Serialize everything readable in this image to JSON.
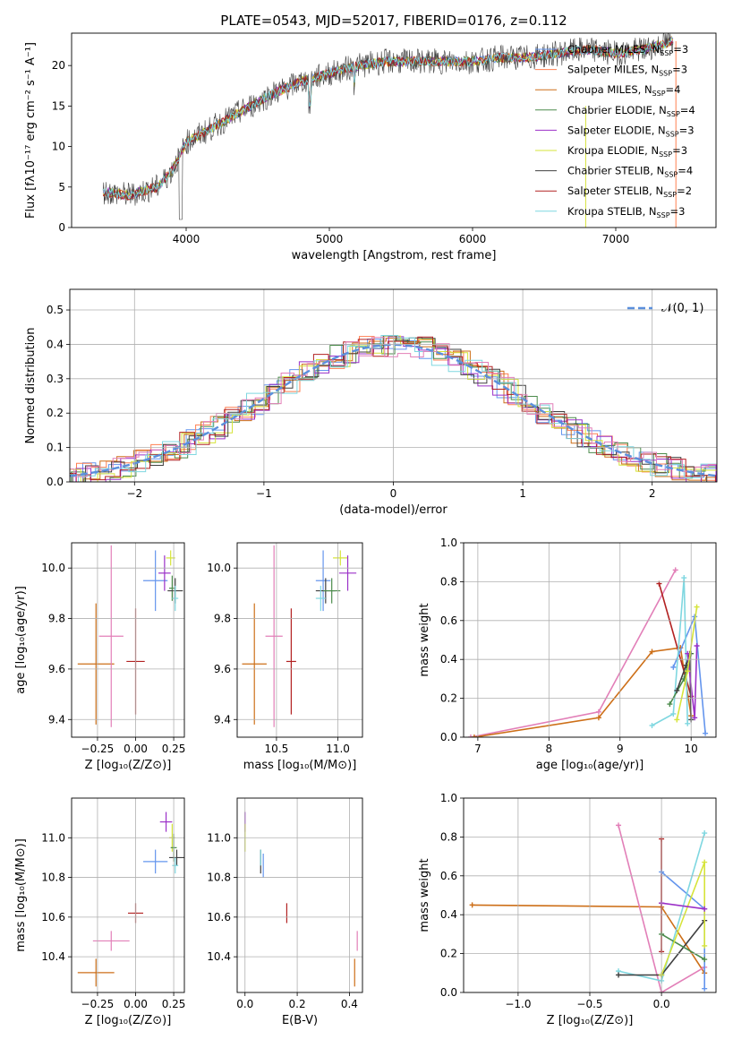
{
  "chart_data": [
    {
      "type": "line",
      "title": "PLATE=0543, MJD=52017, FIBERID=0176, z=0.112",
      "xlabel": "wavelength [Angstrom, rest frame]",
      "ylabel": "Flux [fλ10⁻¹⁷ erg cm⁻² s⁻¹ A⁻¹]",
      "xlim": [
        3200,
        7700
      ],
      "ylim": [
        0,
        24
      ],
      "xticks": [
        "4000",
        "5000",
        "6000",
        "7000"
      ],
      "yticks": [
        "0",
        "5",
        "10",
        "15",
        "20"
      ],
      "grid": false,
      "legend_position": "right",
      "spectrum_continuum": {
        "x": [
          3400,
          3600,
          3800,
          3900,
          4000,
          4200,
          4400,
          4600,
          4800,
          5000,
          5200,
          5400,
          5600,
          5800,
          6000,
          6200,
          6400,
          6600,
          6800,
          7000,
          7200,
          7300,
          7400
        ],
        "y": [
          4.5,
          4.0,
          5.0,
          7.0,
          10.5,
          12.5,
          14.5,
          16.5,
          18.0,
          19.0,
          20.0,
          20.5,
          20.5,
          20.5,
          20.5,
          21.0,
          21.0,
          21.5,
          22.0,
          21.5,
          22.0,
          22.5,
          23.0
        ]
      },
      "series": [
        {
          "name": "Chabrier MILES, N",
          "sub": "SSP",
          "tail": "=3",
          "color": "#6495ed"
        },
        {
          "name": "Salpeter MILES, N",
          "sub": "SSP",
          "tail": "=3",
          "color": "#ff7f50"
        },
        {
          "name": "Kroupa MILES, N",
          "sub": "SSP",
          "tail": "=4",
          "color": "#cd6f18"
        },
        {
          "name": "Chabrier ELODIE, N",
          "sub": "SSP",
          "tail": "=4",
          "color": "#4b8b4b"
        },
        {
          "name": "Salpeter ELODIE, N",
          "sub": "SSP",
          "tail": "=3",
          "color": "#9b30c8"
        },
        {
          "name": "Kroupa ELODIE, N",
          "sub": "SSP",
          "tail": "=3",
          "color": "#d6e43a"
        },
        {
          "name": "Chabrier STELIB, N",
          "sub": "SSP",
          "tail": "=4",
          "color": "#404040"
        },
        {
          "name": "Salpeter STELIB, N",
          "sub": "SSP",
          "tail": "=2",
          "color": "#b22222"
        },
        {
          "name": "Kroupa STELIB, N",
          "sub": "SSP",
          "tail": "=3",
          "color": "#7fd7e0"
        }
      ]
    },
    {
      "type": "line",
      "xlabel": "(data-model)/error",
      "ylabel": "Normed distribution",
      "xlim": [
        -2.5,
        2.5
      ],
      "ylim": [
        0,
        0.56
      ],
      "xticks": [
        "−2",
        "−1",
        "0",
        "1",
        "2"
      ],
      "yticks": [
        "0.0",
        "0.1",
        "0.2",
        "0.3",
        "0.4",
        "0.5"
      ],
      "grid": true,
      "legend_position": "top-right",
      "legend_label": "𝒩(0, 1)",
      "curve_color": "#5b8fdc",
      "hist_colors": [
        "#6495ed",
        "#ff7f50",
        "#cd6f18",
        "#4b8b4b",
        "#9b30c8",
        "#d6e43a",
        "#404040",
        "#b22222",
        "#7fd7e0",
        "#e27fb8"
      ]
    },
    {
      "type": "scatter",
      "xlabel": "Z [log₁₀(Z/Z⊙)]",
      "ylabel": "age  [log₁₀(age/yr)]",
      "xlim": [
        -0.42,
        0.32
      ],
      "ylim": [
        9.33,
        10.1
      ],
      "xticks": [
        "−0.25",
        "0.00",
        "0.25"
      ],
      "yticks": [
        "9.4",
        "9.6",
        "9.8",
        "10.0"
      ],
      "points": [
        {
          "x": -0.26,
          "y": 9.62,
          "xerr": 0.12,
          "yerr": 0.24,
          "color": "#cd6f18"
        },
        {
          "x": -0.16,
          "y": 9.73,
          "xerr": 0.08,
          "yerr": 0.36,
          "color": "#e27fb8"
        },
        {
          "x": 0.0,
          "y": 9.63,
          "xerr": 0.06,
          "yerr": 0.21,
          "color": "#b22222"
        },
        {
          "x": 0.13,
          "y": 9.95,
          "xerr": 0.08,
          "yerr": 0.12,
          "color": "#6495ed"
        },
        {
          "x": 0.19,
          "y": 9.98,
          "xerr": 0.04,
          "yerr": 0.07,
          "color": "#9b30c8"
        },
        {
          "x": 0.23,
          "y": 10.04,
          "xerr": 0.03,
          "yerr": 0.03,
          "color": "#d6e43a"
        },
        {
          "x": 0.24,
          "y": 9.92,
          "xerr": 0.02,
          "yerr": 0.05,
          "color": "#4b8b4b"
        },
        {
          "x": 0.26,
          "y": 9.91,
          "xerr": 0.05,
          "yerr": 0.05,
          "color": "#404040"
        },
        {
          "x": 0.26,
          "y": 9.88,
          "xerr": 0.02,
          "yerr": 0.05,
          "color": "#7fd7e0"
        }
      ]
    },
    {
      "type": "scatter",
      "xlabel": "mass [log₁₀(M/M⊙)]",
      "xlim": [
        10.18,
        11.2
      ],
      "ylim": [
        9.33,
        10.1
      ],
      "xticks": [
        "10.5",
        "11.0"
      ],
      "yticks": [
        "9.4",
        "9.6",
        "9.8",
        "10.0"
      ],
      "points": [
        {
          "x": 10.32,
          "y": 9.62,
          "xerr": 0.1,
          "yerr": 0.24,
          "color": "#cd6f18"
        },
        {
          "x": 10.48,
          "y": 9.73,
          "xerr": 0.07,
          "yerr": 0.36,
          "color": "#e27fb8"
        },
        {
          "x": 10.62,
          "y": 9.63,
          "xerr": 0.04,
          "yerr": 0.21,
          "color": "#b22222"
        },
        {
          "x": 10.88,
          "y": 9.95,
          "xerr": 0.06,
          "yerr": 0.12,
          "color": "#6495ed"
        },
        {
          "x": 10.9,
          "y": 9.91,
          "xerr": 0.08,
          "yerr": 0.05,
          "color": "#404040"
        },
        {
          "x": 10.86,
          "y": 9.88,
          "xerr": 0.04,
          "yerr": 0.05,
          "color": "#7fd7e0"
        },
        {
          "x": 10.95,
          "y": 9.91,
          "xerr": 0.07,
          "yerr": 0.05,
          "color": "#4b8b4b"
        },
        {
          "x": 11.02,
          "y": 10.04,
          "xerr": 0.06,
          "yerr": 0.03,
          "color": "#d6e43a"
        },
        {
          "x": 11.08,
          "y": 9.98,
          "xerr": 0.07,
          "yerr": 0.07,
          "color": "#9b30c8"
        }
      ]
    },
    {
      "type": "line",
      "xlabel": "age  [log₁₀(age/yr)]",
      "ylabel": "mass weight",
      "xlim": [
        6.8,
        10.35
      ],
      "ylim": [
        0,
        1.0
      ],
      "xticks": [
        "7",
        "8",
        "9",
        "10"
      ],
      "yticks": [
        "0.0",
        "0.2",
        "0.4",
        "0.6",
        "0.8",
        "1.0"
      ],
      "grid": true,
      "series": [
        {
          "color": "#e27fb8",
          "x": [
            6.9,
            8.7,
            9.78
          ],
          "y": [
            0.0,
            0.13,
            0.86
          ]
        },
        {
          "color": "#cd6f18",
          "x": [
            6.95,
            8.7,
            9.45,
            9.85,
            10.0
          ],
          "y": [
            0.0,
            0.1,
            0.44,
            0.46,
            0.11
          ]
        },
        {
          "color": "#b22222",
          "x": [
            9.55,
            10.0
          ],
          "y": [
            0.79,
            0.21
          ]
        },
        {
          "color": "#6495ed",
          "x": [
            9.75,
            10.05,
            10.2
          ],
          "y": [
            0.36,
            0.62,
            0.02
          ]
        },
        {
          "color": "#7fd7e0",
          "x": [
            9.45,
            9.75,
            9.9,
            9.95
          ],
          "y": [
            0.06,
            0.12,
            0.82,
            0.07
          ]
        },
        {
          "color": "#4b8b4b",
          "x": [
            9.7,
            9.9,
            10.0
          ],
          "y": [
            0.17,
            0.3,
            0.43
          ]
        },
        {
          "color": "#404040",
          "x": [
            9.8,
            9.93,
            9.98,
            10.0
          ],
          "y": [
            0.24,
            0.37,
            0.43,
            0.09
          ]
        },
        {
          "color": "#9b30c8",
          "x": [
            9.95,
            10.05,
            10.08
          ],
          "y": [
            0.43,
            0.1,
            0.47
          ]
        },
        {
          "color": "#d6e43a",
          "x": [
            9.8,
            9.95,
            10.08
          ],
          "y": [
            0.09,
            0.34,
            0.67
          ]
        }
      ]
    },
    {
      "type": "scatter",
      "xlabel": "Z [log₁₀(Z/Z⊙)]",
      "ylabel": "mass [log₁₀(M/M⊙)]",
      "xlim": [
        -0.42,
        0.32
      ],
      "ylim": [
        10.22,
        11.2
      ],
      "xticks": [
        "−0.25",
        "0.00",
        "0.25"
      ],
      "yticks": [
        "10.4",
        "10.6",
        "10.8",
        "11.0"
      ],
      "points": [
        {
          "x": -0.26,
          "y": 10.32,
          "xerr": 0.12,
          "yerr": 0.07,
          "color": "#cd6f18"
        },
        {
          "x": -0.16,
          "y": 10.48,
          "xerr": 0.12,
          "yerr": 0.05,
          "color": "#e27fb8"
        },
        {
          "x": 0.0,
          "y": 10.62,
          "xerr": 0.05,
          "yerr": 0.05,
          "color": "#b22222"
        },
        {
          "x": 0.13,
          "y": 10.88,
          "xerr": 0.08,
          "yerr": 0.06,
          "color": "#6495ed"
        },
        {
          "x": 0.2,
          "y": 11.08,
          "xerr": 0.04,
          "yerr": 0.05,
          "color": "#9b30c8"
        },
        {
          "x": 0.24,
          "y": 11.0,
          "xerr": 0.02,
          "yerr": 0.07,
          "color": "#d6e43a"
        },
        {
          "x": 0.25,
          "y": 10.95,
          "xerr": 0.02,
          "yerr": 0.07,
          "color": "#4b8b4b"
        },
        {
          "x": 0.27,
          "y": 10.9,
          "xerr": 0.05,
          "yerr": 0.04,
          "color": "#404040"
        },
        {
          "x": 0.26,
          "y": 10.86,
          "xerr": 0.02,
          "yerr": 0.04,
          "color": "#7fd7e0"
        }
      ]
    },
    {
      "type": "scatter",
      "xlabel": "E(B-V)",
      "xlim": [
        -0.03,
        0.45
      ],
      "ylim": [
        10.22,
        11.2
      ],
      "xticks": [
        "0.0",
        "0.2",
        "0.4"
      ],
      "yticks": [
        "10.4",
        "10.6",
        "10.8",
        "11.0"
      ],
      "points": [
        {
          "x": 0.0,
          "y": 11.08,
          "yerr": 0.05,
          "color": "#9b30c8"
        },
        {
          "x": 0.0,
          "y": 11.0,
          "yerr": 0.07,
          "color": "#d6e43a"
        },
        {
          "x": 0.06,
          "y": 10.88,
          "yerr": 0.06,
          "color": "#404040"
        },
        {
          "x": 0.07,
          "y": 10.86,
          "yerr": 0.06,
          "color": "#6495ed"
        },
        {
          "x": 0.06,
          "y": 10.9,
          "yerr": 0.04,
          "color": "#7fd7e0"
        },
        {
          "x": 0.16,
          "y": 10.62,
          "yerr": 0.05,
          "color": "#b22222"
        },
        {
          "x": 0.42,
          "y": 10.32,
          "yerr": 0.07,
          "color": "#cd6f18"
        },
        {
          "x": 0.43,
          "y": 10.48,
          "yerr": 0.05,
          "color": "#e27fb8"
        }
      ]
    },
    {
      "type": "line",
      "xlabel": "Z [log₁₀(Z/Z⊙)]",
      "ylabel": "mass weight",
      "xlim": [
        -1.38,
        0.38
      ],
      "ylim": [
        0,
        1.0
      ],
      "xticks": [
        "−1.0",
        "−0.5",
        "0.0"
      ],
      "yticks": [
        "0.0",
        "0.2",
        "0.4",
        "0.6",
        "0.8",
        "1.0"
      ],
      "grid": true,
      "series": [
        {
          "color": "#cd6f18",
          "x": [
            -1.32,
            0.0,
            0.3
          ],
          "y": [
            0.45,
            0.44,
            0.1
          ]
        },
        {
          "color": "#e27fb8",
          "x": [
            -0.3,
            0.0,
            0.3
          ],
          "y": [
            0.86,
            0.0,
            0.13
          ]
        },
        {
          "color": "#b22222",
          "x": [
            0.0,
            0.0,
            0.0
          ],
          "y": [
            0.79,
            0.46,
            0.21
          ]
        },
        {
          "color": "#6495ed",
          "x": [
            0.0,
            0.3,
            0.3
          ],
          "y": [
            0.62,
            0.43,
            0.02
          ]
        },
        {
          "color": "#7fd7e0",
          "x": [
            -0.3,
            0.0,
            0.3
          ],
          "y": [
            0.11,
            0.06,
            0.82
          ]
        },
        {
          "color": "#404040",
          "x": [
            -0.3,
            0.0,
            0.3
          ],
          "y": [
            0.09,
            0.09,
            0.37
          ]
        },
        {
          "color": "#4b8b4b",
          "x": [
            0.0,
            0.3
          ],
          "y": [
            0.3,
            0.17
          ]
        },
        {
          "color": "#d6e43a",
          "x": [
            0.0,
            0.3,
            0.3
          ],
          "y": [
            0.09,
            0.67,
            0.24
          ]
        },
        {
          "color": "#9b30c8",
          "x": [
            0.0,
            0.3
          ],
          "y": [
            0.46,
            0.43
          ]
        }
      ]
    }
  ]
}
